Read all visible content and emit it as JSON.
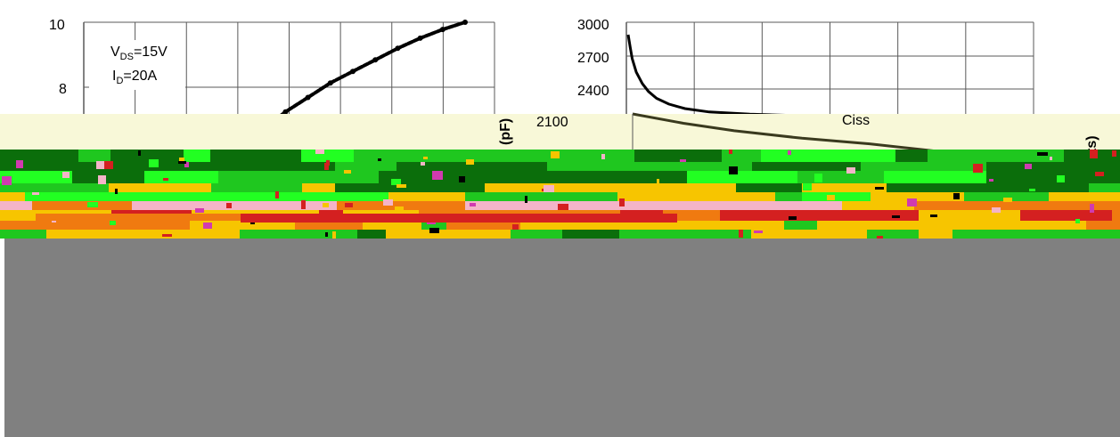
{
  "colors": {
    "grid": "#595959",
    "curve": "#000000",
    "olive_curve": "#3a3a1e",
    "band_bg": "#f8f8d8",
    "glitch_green": "#1fc71f",
    "glitch_dark_green": "#0b6e0b",
    "glitch_bright_green": "#22ff22",
    "glitch_yellow": "#f7c500",
    "glitch_orange": "#f07a10",
    "glitch_red": "#d42020",
    "glitch_magenta": "#d03bb0",
    "glitch_pink": "#f4b4c8",
    "overlay_gray": "#808080"
  },
  "chart_data": [
    {
      "type": "line",
      "title": "",
      "xlabel": "",
      "ylabel": "",
      "ylim": [
        0,
        10
      ],
      "y_ticks": [
        "10",
        "8"
      ],
      "annotations": [
        {
          "text": "V",
          "sub": "DS",
          "suffix": "=15V"
        },
        {
          "text": "I",
          "sub": "D",
          "suffix": "=20A"
        }
      ],
      "series": [
        {
          "x": [
            0.4,
            0.46,
            0.52,
            0.58,
            0.64,
            0.7,
            0.76,
            0.82,
            0.88,
            0.94,
            1.0
          ],
          "y": [
            5.6,
            6.3,
            6.9,
            7.4,
            7.9,
            8.3,
            8.7,
            9.1,
            9.45,
            9.75,
            10.0
          ]
        }
      ]
    },
    {
      "type": "line",
      "title": "",
      "xlabel": "",
      "ylabel": "(pF)",
      "ylim": [
        1800,
        3000
      ],
      "y_ticks": [
        "3000",
        "2700",
        "2400",
        "2100"
      ],
      "series": [
        {
          "name": "Ciss",
          "x": [
            0.0,
            0.005,
            0.01,
            0.02,
            0.035,
            0.05,
            0.07,
            0.1,
            0.14,
            0.2,
            0.3,
            0.45
          ],
          "y": [
            2890,
            2780,
            2680,
            2560,
            2460,
            2390,
            2330,
            2280,
            2240,
            2210,
            2190,
            2175
          ]
        },
        {
          "x": [
            0.0,
            0.15,
            0.3,
            0.5,
            0.7,
            0.85,
            1.0
          ],
          "y": [
            2200,
            2150,
            2110,
            2070,
            2040,
            2010,
            1980
          ]
        }
      ],
      "labels": {
        "ciss": "Ciss",
        "right_axis_fragment": "ts)"
      }
    }
  ]
}
